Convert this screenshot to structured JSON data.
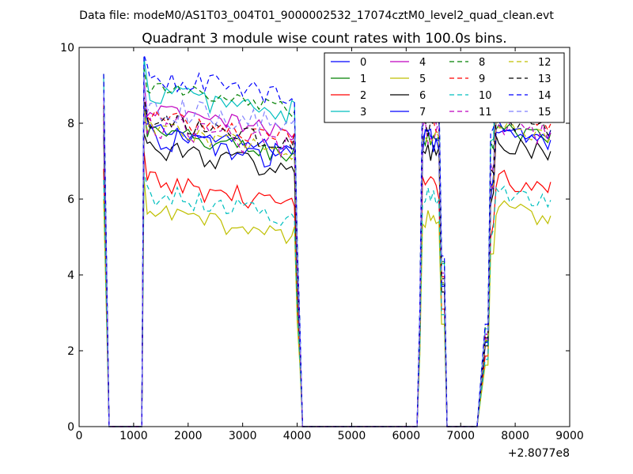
{
  "header": {
    "supertitle": "Data file: modeM0/AS1T03_004T01_9000002532_17074cztM0_level2_quad_clean.evt",
    "title": "Quadrant 3 module wise count rates with 100.0s bins."
  },
  "axes": {
    "x_ticks": [
      "0",
      "1000",
      "2000",
      "3000",
      "4000",
      "5000",
      "6000",
      "7000",
      "8000",
      "9000"
    ],
    "y_ticks": [
      "0",
      "2",
      "4",
      "6",
      "8",
      "10"
    ],
    "x_offset_label": "+2.8077e8"
  },
  "chart_data": {
    "type": "line",
    "title": "Quadrant 3 module wise count rates with 100.0s bins.",
    "xlabel": "",
    "ylabel": "",
    "x_offset": 280770000,
    "xlim": [
      0,
      9000
    ],
    "ylim": [
      0,
      10
    ],
    "grid": false,
    "legend_position": "top-right",
    "legend_columns": 4,
    "shape_x": [
      450,
      550,
      580,
      1150,
      1190,
      1250,
      1300,
      1400,
      1500,
      1600,
      1700,
      1800,
      1900,
      2000,
      2100,
      2200,
      2300,
      2400,
      2500,
      2600,
      2700,
      2800,
      2900,
      3000,
      3100,
      3200,
      3300,
      3400,
      3500,
      3600,
      3700,
      3800,
      3900,
      3950,
      4000,
      4050,
      4100,
      4150,
      4200,
      4300,
      4500,
      5000,
      5500,
      6000,
      6200,
      6250,
      6300,
      6350,
      6400,
      6450,
      6500,
      6550,
      6600,
      6650,
      6700,
      6750,
      6800,
      7000,
      7300,
      7450,
      7500,
      7550,
      7600,
      7650,
      7700,
      7800,
      7900,
      8000,
      8100,
      8200,
      8300,
      8400,
      8500,
      8600,
      8650
    ],
    "series": [
      {
        "name": "0",
        "color": "#0000ff",
        "dashed": false,
        "level": 7.6
      },
      {
        "name": "1",
        "color": "#008000",
        "dashed": false,
        "level": 7.5
      },
      {
        "name": "2",
        "color": "#ff0000",
        "dashed": false,
        "level": 6.2
      },
      {
        "name": "3",
        "color": "#00bfbf",
        "dashed": false,
        "level": 8.6
      },
      {
        "name": "4",
        "color": "#bf00bf",
        "dashed": false,
        "level": 8.1
      },
      {
        "name": "5",
        "color": "#bfbf00",
        "dashed": false,
        "level": 5.4
      },
      {
        "name": "6",
        "color": "#000000",
        "dashed": false,
        "level": 7.1
      },
      {
        "name": "7",
        "color": "#0000ff",
        "dashed": false,
        "level": 7.4
      },
      {
        "name": "8",
        "color": "#008000",
        "dashed": true,
        "level": 8.7
      },
      {
        "name": "9",
        "color": "#ff0000",
        "dashed": true,
        "level": 7.9
      },
      {
        "name": "10",
        "color": "#00bfbf",
        "dashed": true,
        "level": 5.9
      },
      {
        "name": "11",
        "color": "#bf00bf",
        "dashed": true,
        "level": 7.7
      },
      {
        "name": "12",
        "color": "#bfbf00",
        "dashed": true,
        "level": 7.6
      },
      {
        "name": "13",
        "color": "#000000",
        "dashed": true,
        "level": 7.8
      },
      {
        "name": "14",
        "color": "#0000ff",
        "dashed": true,
        "level": 9.0
      },
      {
        "name": "15",
        "color": "#7f7fff",
        "dashed": true,
        "level": 8.2
      }
    ]
  }
}
